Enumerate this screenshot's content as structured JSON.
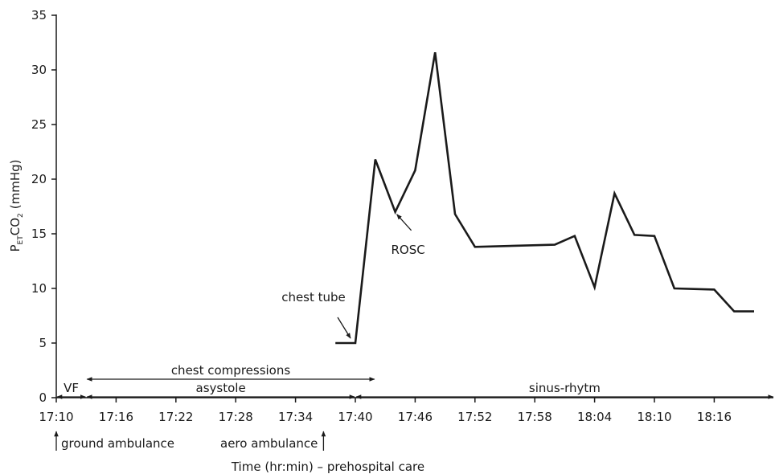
{
  "chart_data": {
    "type": "line",
    "xlabel": "Time (hr:min) – prehospital care",
    "ylabel": {
      "base": "P",
      "sub1": "ET",
      "mid": "CO",
      "sub2": "2",
      "unit": "(mmHg)"
    },
    "x_unit": "minutes after 17:10",
    "xlim": [
      0,
      72
    ],
    "ylim": [
      0,
      35
    ],
    "x_ticks": [
      "17:10",
      "17:16",
      "17:22",
      "17:28",
      "17:34",
      "17:40",
      "17:46",
      "17:52",
      "17:58",
      "18:04",
      "18:10",
      "18:16"
    ],
    "y_ticks": [
      "0",
      "5",
      "10",
      "15",
      "20",
      "25",
      "30",
      "35"
    ],
    "series": [
      {
        "x": [
          "17:38",
          "17:40",
          "17:42",
          "17:44",
          "17:46",
          "17:48",
          "17:50",
          "17:52",
          "18:00",
          "18:02",
          "18:04",
          "18:06",
          "18:08",
          "18:10",
          "18:12",
          "18:16",
          "18:18",
          "18:20"
        ],
        "values": [
          5,
          5,
          21.8,
          17,
          20.8,
          31.6,
          16.8,
          13.8,
          14,
          14.8,
          10.1,
          18.7,
          14.9,
          14.8,
          10,
          9.9,
          7.9,
          7.9
        ]
      }
    ],
    "phases": [
      {
        "label": "VF",
        "start": "17:10",
        "end": "17:13",
        "row": "bottom"
      },
      {
        "label": "asystole",
        "start": "17:13",
        "end": "17:40",
        "row": "bottom"
      },
      {
        "label": "sinus-rhytm",
        "start": "17:40",
        "end": "18:22",
        "row": "bottom"
      },
      {
        "label": "chest compressions",
        "start": "17:13",
        "end": "17:42",
        "row": "top"
      }
    ],
    "annotations": [
      {
        "text": "chest tube",
        "target": [
          "17:40",
          5
        ]
      },
      {
        "text": "ROSC",
        "target": [
          "17:44",
          17
        ]
      }
    ],
    "events": [
      {
        "text": "ground ambulance",
        "time": "17:10"
      },
      {
        "text": "aero ambulance",
        "time": "17:36"
      }
    ]
  }
}
